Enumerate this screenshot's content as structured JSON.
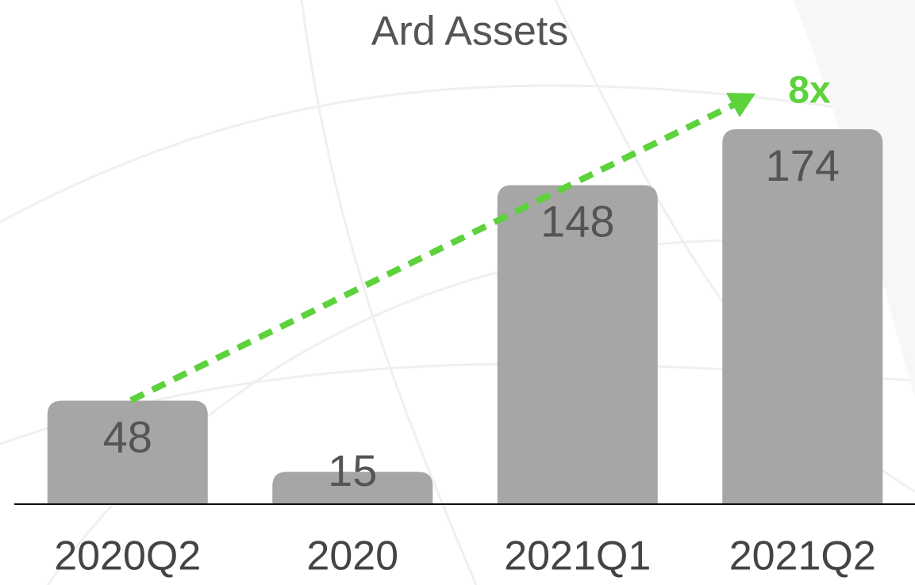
{
  "chart_data": {
    "type": "bar",
    "title": "Ard Assets",
    "categories": [
      "2020Q2",
      "2020",
      "2021Q1",
      "2021Q2"
    ],
    "values": [
      48,
      15,
      148,
      174
    ],
    "color": "#a6a6a6",
    "annotation": "8x",
    "annotation_color": "#5dd23c"
  }
}
